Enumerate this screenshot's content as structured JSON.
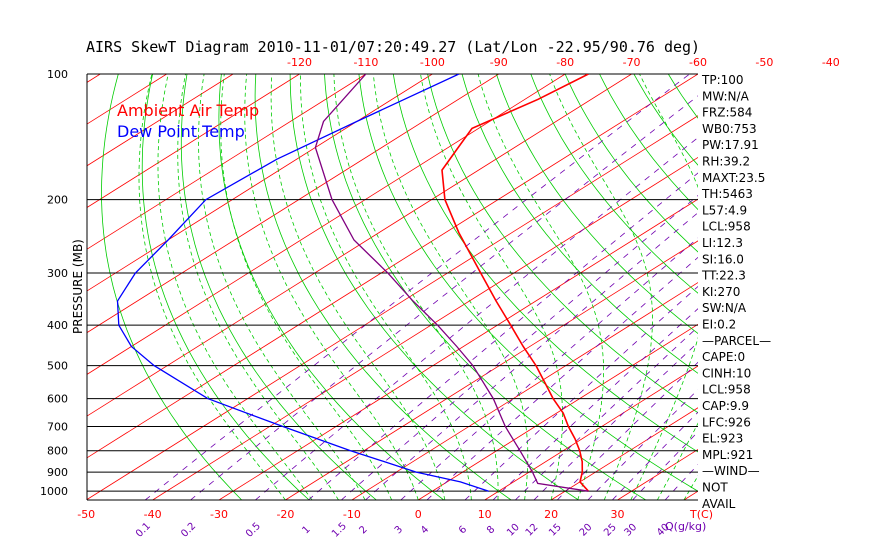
{
  "chart_data": {
    "type": "line",
    "title": "AIRS SkewT Diagram 2010-11-01/07:20:49.27 (Lat/Lon -22.95/90.76 deg)",
    "ylabel": "PRESSURE (MB)",
    "y_scale": "log",
    "y_reversed": true,
    "ylim": [
      100,
      1050
    ],
    "pressure_ticks": [
      100,
      200,
      300,
      400,
      500,
      600,
      700,
      800,
      900,
      1000
    ],
    "top_temp_ticks": [
      -120,
      -110,
      -100,
      -90,
      -80,
      -70,
      -60,
      -50,
      -40
    ],
    "bottom_temp_ticks": [
      -50,
      -40,
      -30,
      -20,
      -10,
      0,
      10,
      20,
      30
    ],
    "bottom_temp_unit": "T(C)",
    "mixing_ratio_ticks": [
      "0.1",
      "0.2",
      "0.5",
      "1",
      "1.5",
      "2",
      "3",
      "4",
      "6",
      "8",
      "10",
      "12",
      "15",
      "20",
      "25",
      "30",
      "40"
    ],
    "mixing_ratio_unit": "Q(g/kg)",
    "skew_deg_per_decade": 100,
    "xlim_at_1000": [
      -52,
      40
    ],
    "legend": [
      {
        "label": "Ambient Air Temp",
        "color": "#ff0000"
      },
      {
        "label": "Dew Point Temp",
        "color": "#0000ff"
      }
    ],
    "series": [
      {
        "name": "Ambient Air Temp",
        "color": "#ff0000",
        "points": [
          [
            100,
            -76.5
          ],
          [
            115,
            -78
          ],
          [
            135,
            -81
          ],
          [
            150,
            -78.5
          ],
          [
            170,
            -75.5
          ],
          [
            200,
            -68
          ],
          [
            240,
            -58
          ],
          [
            300,
            -45
          ],
          [
            350,
            -36
          ],
          [
            400,
            -28
          ],
          [
            450,
            -21
          ],
          [
            500,
            -14.5
          ],
          [
            550,
            -9
          ],
          [
            600,
            -4
          ],
          [
            650,
            1
          ],
          [
            700,
            5
          ],
          [
            750,
            9
          ],
          [
            800,
            12.5
          ],
          [
            850,
            15.5
          ],
          [
            900,
            18
          ],
          [
            950,
            20
          ],
          [
            1000,
            23.5
          ]
        ]
      },
      {
        "name": "Dew Point Temp",
        "color": "#0000ff",
        "points": [
          [
            100,
            -96
          ],
          [
            130,
            -100
          ],
          [
            160,
            -103
          ],
          [
            200,
            -104
          ],
          [
            250,
            -100
          ],
          [
            300,
            -97
          ],
          [
            350,
            -93
          ],
          [
            400,
            -87
          ],
          [
            450,
            -80
          ],
          [
            500,
            -72
          ],
          [
            600,
            -56
          ],
          [
            700,
            -38
          ],
          [
            800,
            -22
          ],
          [
            900,
            -7
          ],
          [
            950,
            2
          ],
          [
            1000,
            8.5
          ]
        ]
      },
      {
        "name": "Parcel",
        "color": "#800080",
        "points": [
          [
            100,
            -110
          ],
          [
            130,
            -105
          ],
          [
            150,
            -100
          ],
          [
            200,
            -85
          ],
          [
            250,
            -72
          ],
          [
            300,
            -59
          ],
          [
            350,
            -48.5
          ],
          [
            400,
            -39
          ],
          [
            450,
            -31
          ],
          [
            500,
            -24
          ],
          [
            600,
            -13
          ],
          [
            700,
            -4.5
          ],
          [
            800,
            3.5
          ],
          [
            900,
            10.5
          ],
          [
            958,
            14
          ],
          [
            1000,
            23.5
          ]
        ]
      }
    ],
    "indices": [
      "TP:100",
      "MW:N/A",
      "FRZ:584",
      "WB0:753",
      "PW:17.91",
      "RH:39.2",
      "MAXT:23.5",
      "TH:5463",
      "L57:4.9",
      "LCL:958",
      "LI:12.3",
      "SI:16.0",
      "TT:22.3",
      "KI:270",
      "SW:N/A",
      "EI:0.2",
      "—PARCEL—",
      "CAPE:0",
      "CINH:10",
      "LCL:958",
      "CAP:9.9",
      "LFC:926",
      "EL:923",
      "MPL:921",
      "—WIND—",
      "NOT",
      "AVAIL"
    ],
    "grid": true
  }
}
